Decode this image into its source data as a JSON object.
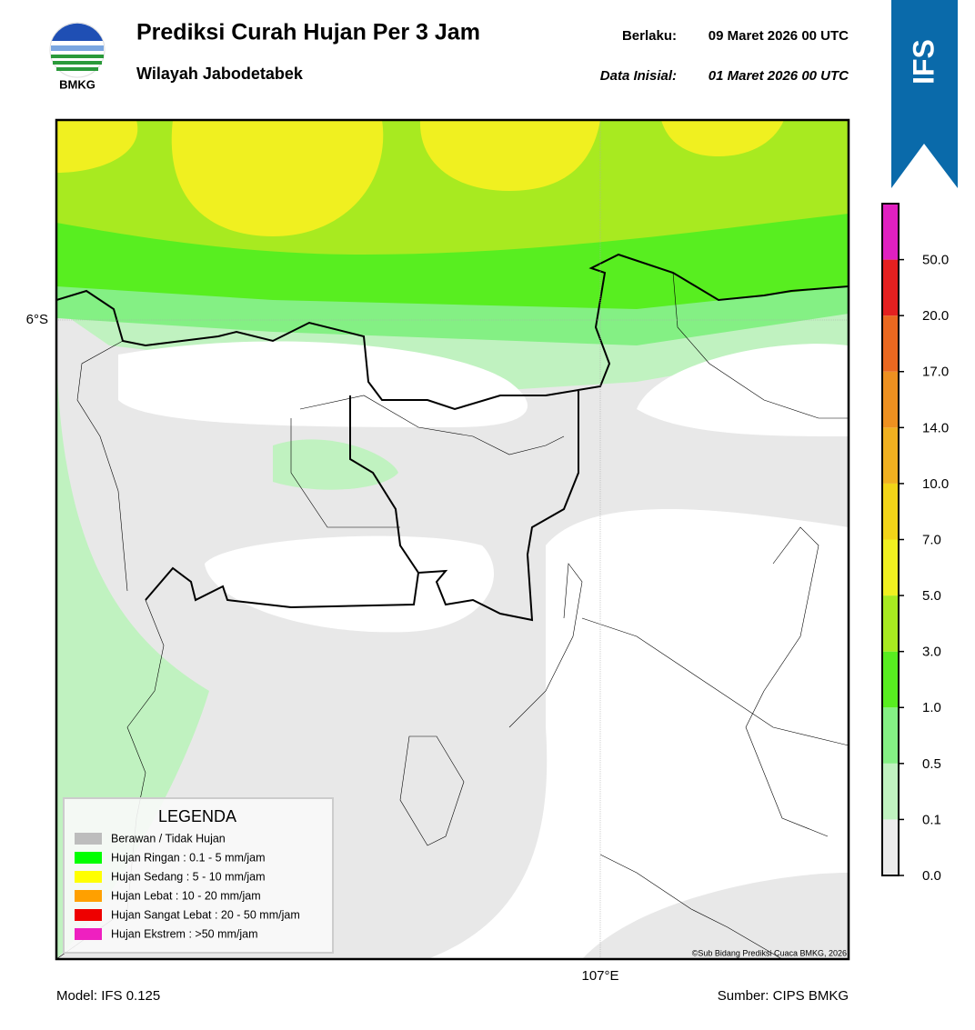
{
  "header": {
    "logo_text": "BMKG",
    "title": "Prediksi Curah Hujan Per 3 Jam",
    "subtitle": "Wilayah Jabodetabek",
    "valid_label": "Berlaku:",
    "valid_value": "09 Maret 2026 00 UTC",
    "init_label": "Data Inisial:",
    "init_value": "01 Maret 2026 00 UTC",
    "badge": "IFS"
  },
  "map": {
    "lat_label": "6°S",
    "lon_label": "107°E",
    "credit": "©Sub Bidang Prediksi Cuaca BMKG, 2026"
  },
  "legend": {
    "title": "LEGENDA",
    "items": [
      {
        "label": "Berawan / Tidak Hujan",
        "color": "#bdbdbd"
      },
      {
        "label": "Hujan Ringan : 0.1 - 5 mm/jam",
        "color": "#00ff00"
      },
      {
        "label": "Hujan Sedang : 5 - 10 mm/jam",
        "color": "#ffff00"
      },
      {
        "label": "Hujan Lebat : 10 - 20 mm/jam",
        "color": "#ffa000"
      },
      {
        "label": "Hujan Sangat Lebat : 20 - 50 mm/jam",
        "color": "#ee0000"
      },
      {
        "label": "Hujan Ekstrem : >50 mm/jam",
        "color": "#ee20c0"
      }
    ]
  },
  "colorbar": {
    "labels": [
      "0.0",
      "0.1",
      "0.5",
      "1.0",
      "3.0",
      "5.0",
      "7.0",
      "10.0",
      "14.0",
      "17.0",
      "20.0",
      "50.0"
    ],
    "colors": [
      "#ececec",
      "#c0f2c0",
      "#84f084",
      "#58ee20",
      "#a8ea20",
      "#f0f020",
      "#f2d418",
      "#f0b020",
      "#ee9020",
      "#ea6820",
      "#e42020",
      "#e020c0"
    ]
  },
  "footer": {
    "model": "Model: IFS 0.125",
    "source": "Sumber: CIPS BMKG"
  }
}
